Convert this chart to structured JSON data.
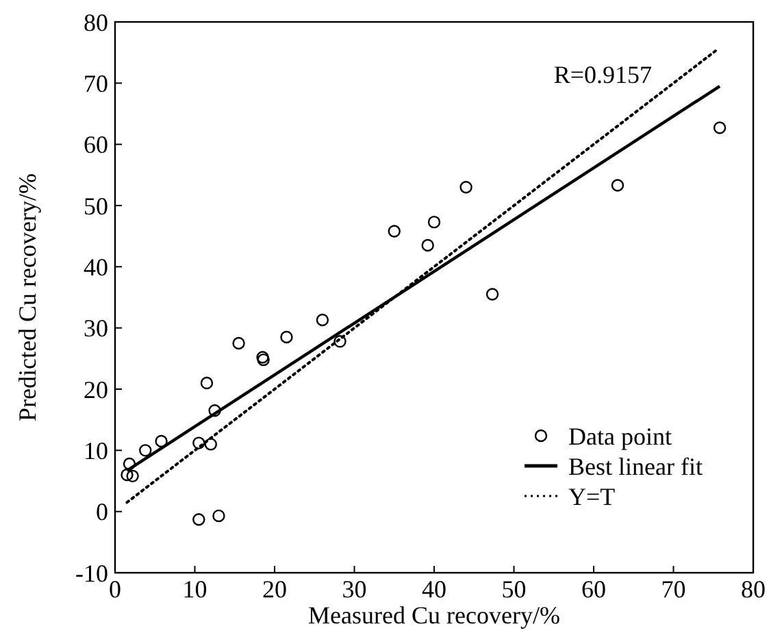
{
  "chart_data": {
    "type": "scatter",
    "xlabel": "Measured Cu recovery/%",
    "ylabel": "Predicted Cu recovery/%",
    "xlim": [
      0,
      80
    ],
    "xticks": [
      0,
      10,
      20,
      30,
      40,
      50,
      60,
      70,
      80
    ],
    "ylim": [
      -10,
      80
    ],
    "yticks": [
      -10,
      0,
      10,
      20,
      30,
      40,
      50,
      60,
      70,
      80
    ],
    "grid": false,
    "legend": "bottom right",
    "annotations": [
      "R=0.9157"
    ],
    "series": [
      {
        "name": "Data point",
        "marker": "circle",
        "color": "#000000",
        "x": [
          1.8,
          1.5,
          2.2,
          3.8,
          5.8,
          10.5,
          10.5,
          11.5,
          12,
          12.5,
          13,
          15.5,
          18.5,
          18.6,
          21.5,
          26,
          28.2,
          35,
          39.2,
          40,
          44,
          47.3,
          63,
          75.8
        ],
        "values": [
          7.8,
          6.0,
          5.8,
          10,
          11.5,
          -1.3,
          11.2,
          21,
          11,
          16.5,
          -0.7,
          27.5,
          25.2,
          24.8,
          28.5,
          31.3,
          27.8,
          45.8,
          43.5,
          47.3,
          53,
          35.5,
          53.3,
          62.7
        ]
      },
      {
        "name": "Best linear fit",
        "type": "line",
        "line_style": "solid",
        "color": "#000000",
        "x": [
          1.5,
          75.8
        ],
        "values": [
          6.7,
          69.5
        ]
      },
      {
        "name": "Y=T",
        "type": "line",
        "line_style": "dotted",
        "color": "#000000",
        "x": [
          1.5,
          75.5
        ],
        "values": [
          1.5,
          75.5
        ]
      }
    ]
  }
}
